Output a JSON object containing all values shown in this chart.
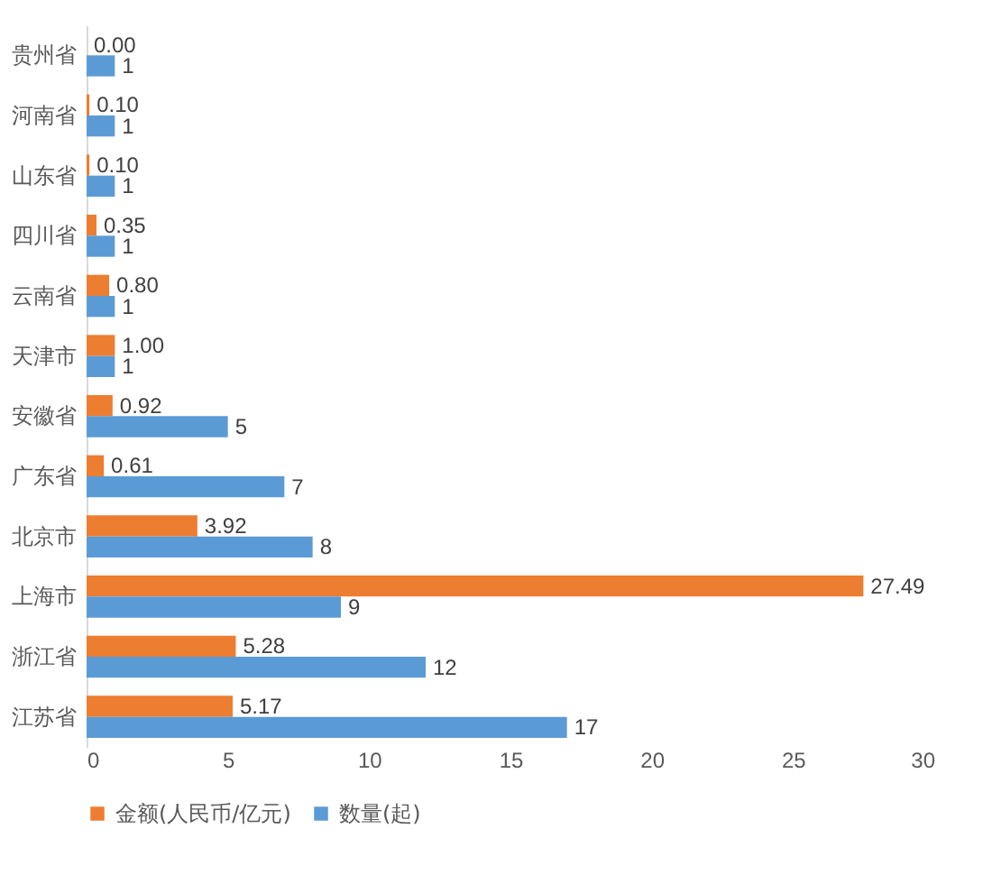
{
  "chart_data": {
    "type": "bar",
    "orientation": "horizontal",
    "categories": [
      "贵州省",
      "河南省",
      "山东省",
      "四川省",
      "云南省",
      "天津市",
      "安徽省",
      "广东省",
      "北京市",
      "上海市",
      "浙江省",
      "江苏省"
    ],
    "series": [
      {
        "name": "金额(人民币/亿元)",
        "color": "#ed7d31",
        "values": [
          0.0,
          0.1,
          0.1,
          0.35,
          0.8,
          1.0,
          0.92,
          0.61,
          3.92,
          27.49,
          5.28,
          5.17
        ],
        "value_labels": [
          "0.00",
          "0.10",
          "0.10",
          "0.35",
          "0.80",
          "1.00",
          "0.92",
          "0.61",
          "3.92",
          "27.49",
          "5.28",
          "5.17"
        ]
      },
      {
        "name": "数量(起)",
        "color": "#5b9bd5",
        "values": [
          1,
          1,
          1,
          1,
          1,
          1,
          5,
          7,
          8,
          9,
          12,
          17
        ],
        "value_labels": [
          "1",
          "1",
          "1",
          "1",
          "1",
          "1",
          "5",
          "7",
          "8",
          "9",
          "12",
          "17"
        ]
      }
    ],
    "xlim": [
      0,
      30
    ],
    "xticks": [
      0,
      5,
      10,
      15,
      20,
      25,
      30
    ],
    "grid": false,
    "legend": "bottom"
  }
}
